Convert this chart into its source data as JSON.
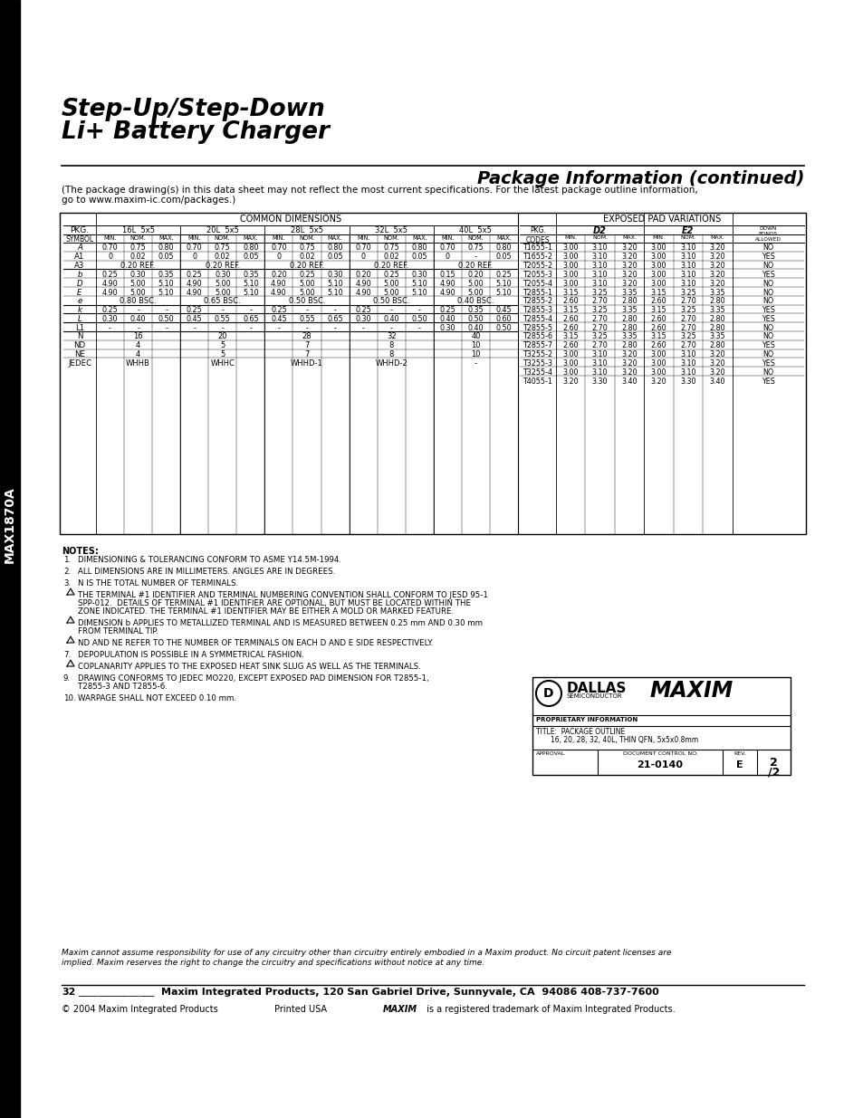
{
  "title_line1": "Step-Up/Step-Down",
  "title_line2": "Li+ Battery Charger",
  "section_title": "Package Information (continued)",
  "sidebar_text": "MAX1870A",
  "package_note1": "(The package drawing(s) in this data sheet may not reflect the most current specifications. For the latest package outline information,",
  "package_note2": "go to www.maxim-ic.com/packages.)",
  "common_dim_title": "COMMON DIMENSIONS",
  "exposed_pad_title": "EXPOSED PAD VARIATIONS",
  "cd_rows": [
    [
      "A",
      "0.70",
      "0.75",
      "0.80",
      "0.70",
      "0.75",
      "0.80",
      "0.70",
      "0.75",
      "0.80",
      "0.70",
      "0.75",
      "0.80",
      "0.70",
      "0.75",
      "0.80"
    ],
    [
      "A1",
      "0",
      "0.02",
      "0.05",
      "0",
      "0.02",
      "0.05",
      "0",
      "0.02",
      "0.05",
      "0",
      "0.02",
      "0.05",
      "0",
      "-",
      "0.05"
    ],
    [
      "A3",
      "0.20 REF.",
      "",
      "",
      "0.20 REF.",
      "",
      "",
      "0.20 REF.",
      "",
      "",
      "0.20 REF.",
      "",
      "",
      "0.20 REF.",
      "",
      ""
    ],
    [
      "b",
      "0.25",
      "0.30",
      "0.35",
      "0.25",
      "0.30",
      "0.35",
      "0.20",
      "0.25",
      "0.30",
      "0.20",
      "0.25",
      "0.30",
      "0.15",
      "0.20",
      "0.25"
    ],
    [
      "D",
      "4.90",
      "5.00",
      "5.10",
      "4.90",
      "5.00",
      "5.10",
      "4.90",
      "5.00",
      "5.10",
      "4.90",
      "5.00",
      "5.10",
      "4.90",
      "5.00",
      "5.10"
    ],
    [
      "E",
      "4.90",
      "5.00",
      "5.10",
      "4.90",
      "5.00",
      "5.10",
      "4.90",
      "5.00",
      "5.10",
      "4.90",
      "5.00",
      "5.10",
      "4.90",
      "5.00",
      "5.10"
    ],
    [
      "e",
      "0.80 BSC.",
      "",
      "",
      "0.65 BSC.",
      "",
      "",
      "0.50 BSC.",
      "",
      "",
      "0.50 BSC.",
      "",
      "",
      "0.40 BSC.",
      "",
      ""
    ],
    [
      "k",
      "0.25",
      "-",
      "-",
      "0.25",
      "-",
      "-",
      "0.25",
      "-",
      "-",
      "0.25",
      "-",
      "-",
      "0.25",
      "0.35",
      "0.45"
    ],
    [
      "L",
      "0.30",
      "0.40",
      "0.50",
      "0.45",
      "0.55",
      "0.65",
      "0.45",
      "0.55",
      "0.65",
      "0.30",
      "0.40",
      "0.50",
      "0.40",
      "0.50",
      "0.60"
    ],
    [
      "L1",
      "-",
      "-",
      "-",
      "-",
      "-",
      "-",
      "-",
      "-",
      "-",
      "-",
      "-",
      "-",
      "0.30",
      "0.40",
      "0.50"
    ],
    [
      "N",
      "16",
      "",
      "",
      "20",
      "",
      "",
      "28",
      "",
      "",
      "32",
      "",
      "",
      "40",
      "",
      ""
    ],
    [
      "ND",
      "4",
      "",
      "",
      "5",
      "",
      "",
      "7",
      "",
      "",
      "8",
      "",
      "",
      "10",
      "",
      ""
    ],
    [
      "NE",
      "4",
      "",
      "",
      "5",
      "",
      "",
      "7",
      "",
      "",
      "8",
      "",
      "",
      "10",
      "",
      ""
    ],
    [
      "JEDEC",
      "WHHB",
      "",
      "",
      "WHHC",
      "",
      "",
      "WHHD-1",
      "",
      "",
      "WHHD-2",
      "",
      "",
      "-",
      "",
      ""
    ]
  ],
  "ep_rows": [
    [
      "T1655-1",
      "3.00",
      "3.10",
      "3.20",
      "3.00",
      "3.10",
      "3.20",
      "NO"
    ],
    [
      "T1655-2",
      "3.00",
      "3.10",
      "3.20",
      "3.00",
      "3.10",
      "3.20",
      "YES"
    ],
    [
      "T2055-2",
      "3.00",
      "3.10",
      "3.20",
      "3.00",
      "3.10",
      "3.20",
      "NO"
    ],
    [
      "T2055-3",
      "3.00",
      "3.10",
      "3.20",
      "3.00",
      "3.10",
      "3.20",
      "YES"
    ],
    [
      "T2055-4",
      "3.00",
      "3.10",
      "3.20",
      "3.00",
      "3.10",
      "3.20",
      "NO"
    ],
    [
      "T2855-1",
      "3.15",
      "3.25",
      "3.35",
      "3.15",
      "3.25",
      "3.35",
      "NO"
    ],
    [
      "T2855-2",
      "2.60",
      "2.70",
      "2.80",
      "2.60",
      "2.70",
      "2.80",
      "NO"
    ],
    [
      "T2855-3",
      "3.15",
      "3.25",
      "3.35",
      "3.15",
      "3.25",
      "3.35",
      "YES"
    ],
    [
      "T2855-4",
      "2.60",
      "2.70",
      "2.80",
      "2.60",
      "2.70",
      "2.80",
      "YES"
    ],
    [
      "T2855-5",
      "2.60",
      "2.70",
      "2.80",
      "2.60",
      "2.70",
      "2.80",
      "NO"
    ],
    [
      "T2855-6",
      "3.15",
      "3.25",
      "3.35",
      "3.15",
      "3.25",
      "3.35",
      "NO"
    ],
    [
      "T2855-7",
      "2.60",
      "2.70",
      "2.80",
      "2.60",
      "2.70",
      "2.80",
      "YES"
    ],
    [
      "T3255-2",
      "3.00",
      "3.10",
      "3.20",
      "3.00",
      "3.10",
      "3.20",
      "NO"
    ],
    [
      "T3255-3",
      "3.00",
      "3.10",
      "3.20",
      "3.00",
      "3.10",
      "3.20",
      "YES"
    ],
    [
      "T3255-4",
      "3.00",
      "3.10",
      "3.20",
      "3.00",
      "3.10",
      "3.20",
      "NO"
    ],
    [
      "T4055-1",
      "3.20",
      "3.30",
      "3.40",
      "3.20",
      "3.30",
      "3.40",
      "YES"
    ]
  ],
  "notes": [
    {
      "num": "NOTES:",
      "text": "",
      "triangle": false
    },
    {
      "num": "1.",
      "text": "DIMENSIONING & TOLERANCING CONFORM TO ASME Y14.5M-1994.",
      "triangle": false
    },
    {
      "num": "2.",
      "text": "ALL DIMENSIONS ARE IN MILLIMETERS. ANGLES ARE IN DEGREES.",
      "triangle": false
    },
    {
      "num": "3.",
      "text": "N IS THE TOTAL NUMBER OF TERMINALS.",
      "triangle": false
    },
    {
      "num": "",
      "text": "THE TERMINAL #1 IDENTIFIER AND TERMINAL NUMBERING CONVENTION SHALL CONFORM TO JESD 95-1\nSPP-012.  DETAILS OF TERMINAL #1 IDENTIFIER ARE OPTIONAL, BUT MUST BE LOCATED WITHIN THE\nZONE INDICATED. THE TERMINAL #1 IDENTIFIER MAY BE EITHER A MOLD OR MARKED FEATURE.",
      "triangle": true
    },
    {
      "num": "",
      "text": "DIMENSION b APPLIES TO METALLIZED TERMINAL AND IS MEASURED BETWEEN 0.25 mm AND 0.30 mm\nFROM TERMINAL TIP.",
      "triangle": true
    },
    {
      "num": "",
      "text": "ND AND NE REFER TO THE NUMBER OF TERMINALS ON EACH D AND E SIDE RESPECTIVELY.",
      "triangle": true
    },
    {
      "num": "7.",
      "text": "DEPOPULATION IS POSSIBLE IN A SYMMETRICAL FASHION.",
      "triangle": false
    },
    {
      "num": "",
      "text": "COPLANARITY APPLIES TO THE EXPOSED HEAT SINK SLUG AS WELL AS THE TERMINALS.",
      "triangle": true
    },
    {
      "num": "9.",
      "text": "DRAWING CONFORMS TO JEDEC MO220, EXCEPT EXPOSED PAD DIMENSION FOR T2855-1,\nT2855-3 AND T2855-6.",
      "triangle": false
    },
    {
      "num": "10.",
      "text": "WARPAGE SHALL NOT EXCEED 0.10 mm.",
      "triangle": false
    }
  ],
  "disclaimer_line1": "Maxim cannot assume responsibility for use of any circuitry other than circuitry entirely embodied in a Maxim product. No circuit patent licenses are",
  "disclaimer_line2": "implied. Maxim reserves the right to change the circuitry and specifications without notice at any time.",
  "footer_num": "32",
  "footer_addr": "Maxim Integrated Products, 120 San Gabriel Drive, Sunnyvale, CA  94086 408-737-7600",
  "footer_copy": "© 2004 Maxim Integrated Products",
  "footer_printed": "Printed USA",
  "footer_tm": "is a registered trademark of Maxim Integrated Products.",
  "package_outline_line1": "PACKAGE OUTLINE",
  "package_outline_line2": "16, 20, 28, 32, 40L, THIN QFN, 5x5x0.8mm",
  "doc_control_no": "21-0140",
  "rev": "E",
  "rev_page": "2",
  "bg_color": "#ffffff"
}
